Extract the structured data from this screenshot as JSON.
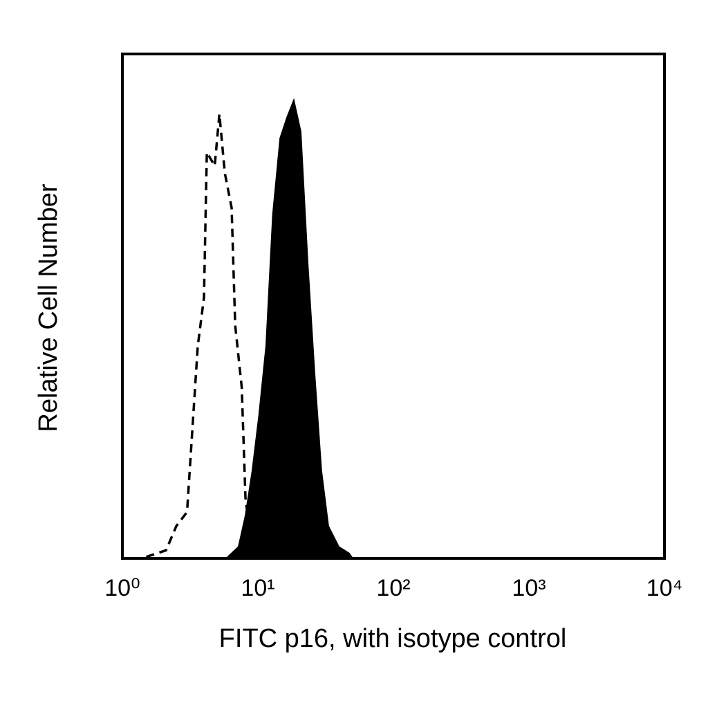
{
  "chart_data": {
    "type": "histogram-overlay",
    "x_label": "FITC p16, with isotype control",
    "y_label": "Relative Cell Number",
    "xscale": "log",
    "xlim": [
      1,
      10000
    ],
    "xticks": [
      {
        "value": 1,
        "label": "10⁰"
      },
      {
        "value": 10,
        "label": "10¹"
      },
      {
        "value": 100,
        "label": "10²"
      },
      {
        "value": 1000,
        "label": "10³"
      },
      {
        "value": 10000,
        "label": "10⁴"
      }
    ],
    "ylim": [
      0,
      100
    ],
    "series": [
      {
        "style": "filled",
        "color": "#000000",
        "x": [
          6.0,
          7.2,
          8.1,
          9.1,
          10.2,
          11.5,
          12.9,
          14.6,
          16.4,
          18.4,
          20.7,
          23.3,
          26.2,
          29.4,
          33.1,
          39.5,
          47.1,
          50
        ],
        "values": [
          0.3,
          2.3,
          8.5,
          17.4,
          28.4,
          42.1,
          68.2,
          83.3,
          87.4,
          90.8,
          84.6,
          58.6,
          36.6,
          17.4,
          6.4,
          2.3,
          1.0,
          0
        ]
      },
      {
        "style": "dashed",
        "color": "#000000",
        "x": [
          1.5,
          2.1,
          2.5,
          3.0,
          3.6,
          4.0,
          4.2,
          4.8,
          5.2,
          5.7,
          6.4,
          6.8,
          7.6,
          8.1,
          9.1,
          10.8
        ],
        "values": [
          0.3,
          1.6,
          6.4,
          9.2,
          42.1,
          51.7,
          80.5,
          77.8,
          88.1,
          76.4,
          69.5,
          46.2,
          33.9,
          11.9,
          1.0,
          0.3
        ]
      }
    ]
  }
}
